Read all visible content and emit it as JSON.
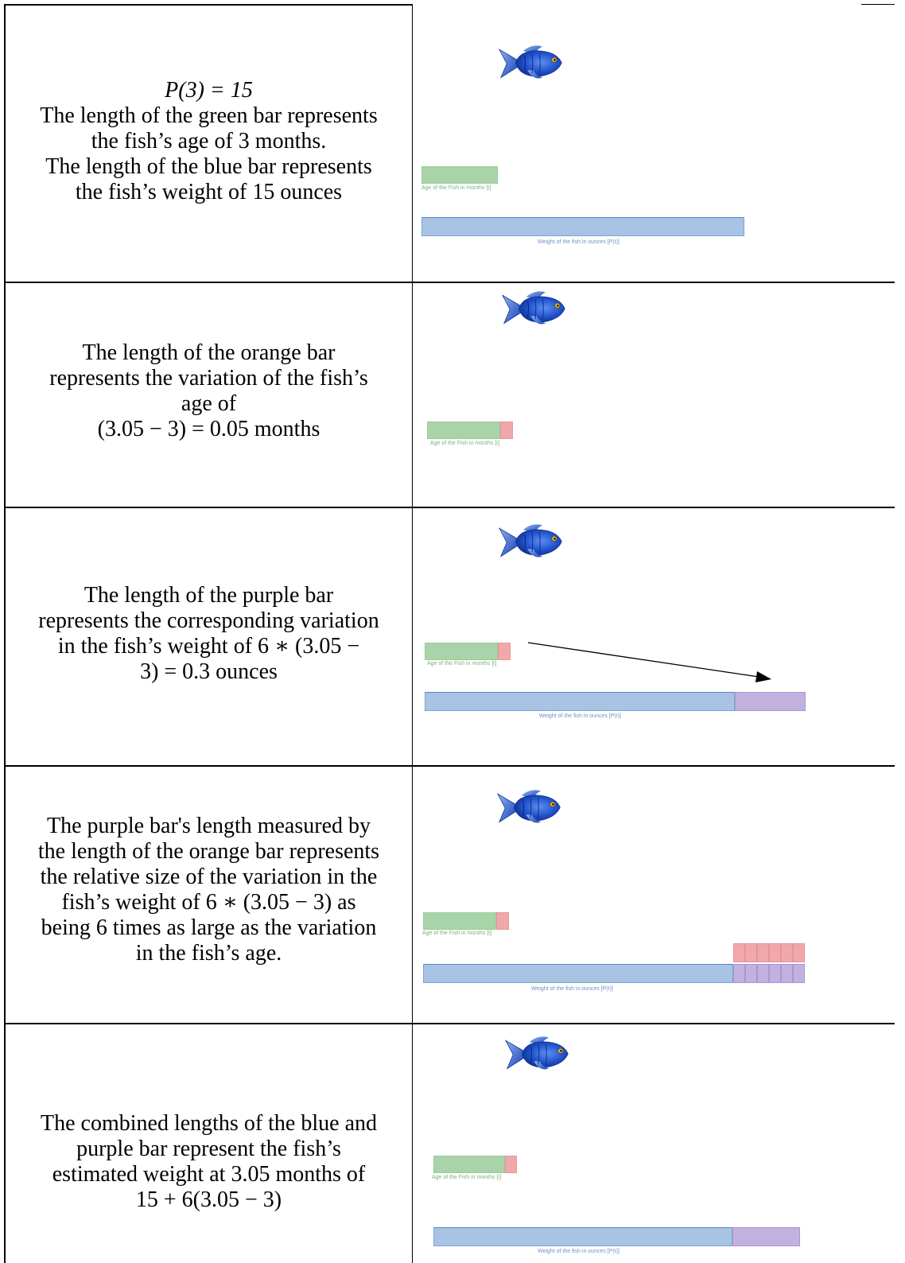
{
  "rows": [
    {
      "lines": [
        "P(3) = 15",
        "The length of the green bar represents",
        "the fish’s age of 3 months.",
        "The length of the blue bar represents",
        "the fish’s weight of 15 ounces"
      ],
      "age_label": "Age of the Fish in months [t]",
      "weight_label": "Weight of the fish in ounces [P(t)]"
    },
    {
      "lines": [
        "The length of the orange bar",
        "represents the variation of the fish’s",
        "age of",
        "(3.05 − 3) = 0.05 months"
      ],
      "age_label": "Age of the Fish in months [t]"
    },
    {
      "lines": [
        "The length of the purple bar",
        "represents the corresponding variation",
        "in the fish’s weight of 6 ∗ (3.05 −",
        "3) = 0.3 ounces"
      ],
      "age_label": "Age of the Fish in months [t]",
      "weight_label": "Weight of the fish in ounces [P(t)]"
    },
    {
      "lines": [
        "The purple bar's length measured by",
        "the length of the orange bar represents",
        "the relative size of the variation in the",
        "fish’s weight of 6 ∗ (3.05 − 3) as",
        "being 6 times as large as the variation",
        "in the fish’s age."
      ],
      "age_label": "Age of the Fish in months [t]",
      "weight_label": "Weight of the fish in ounces [P(t)]"
    },
    {
      "lines": [
        "The combined lengths of the blue and",
        "purple bar represent the fish’s",
        "estimated weight at 3.05 months of",
        "15 + 6(3.05 − 3)"
      ],
      "age_label": "Age of the Fish in months [t]",
      "weight_label": "Weight of the fish in ounces [P(t)]"
    }
  ],
  "colors": {
    "green_bar": "#a9d3a8",
    "blue_bar": "#a8c3e3",
    "orange_bar": "#f0a8ab",
    "purple_bar": "#c2b1df",
    "fish": "#1f4fc8"
  },
  "icons": [
    "fish-icon",
    "arrow-icon"
  ]
}
